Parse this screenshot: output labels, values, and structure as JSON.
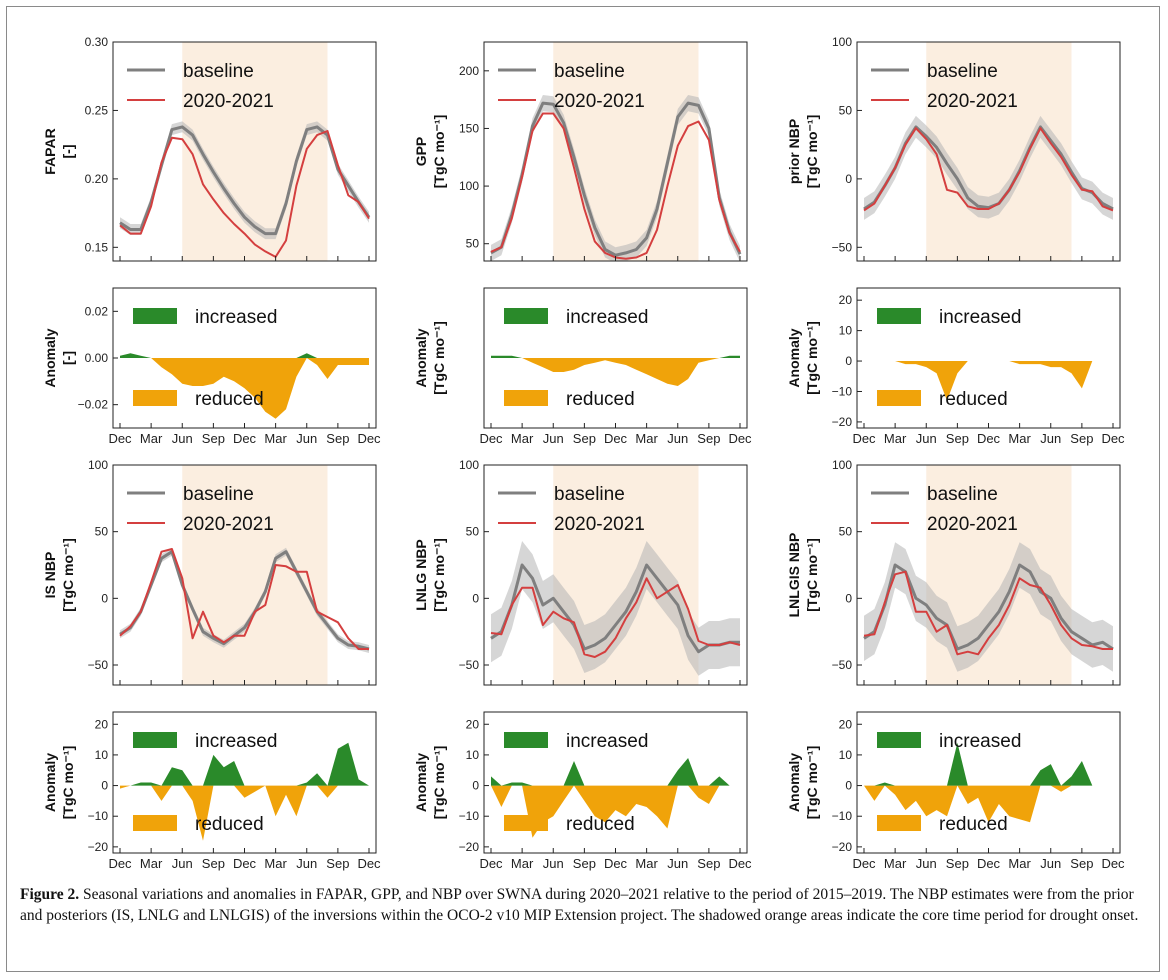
{
  "colors": {
    "baseline": "#7f7f7f",
    "recent": "#d43f3f",
    "band": "#b5b5b5",
    "increased": "#2a8a2a",
    "reduced": "#f0a30a",
    "drought": "#fbeee0"
  },
  "months": [
    "Dec",
    "Jan",
    "Feb",
    "Mar",
    "Apr",
    "May",
    "Jun",
    "Jul",
    "Aug",
    "Sep",
    "Oct",
    "Nov",
    "Dec",
    "Jan",
    "Feb",
    "Mar",
    "Apr",
    "May",
    "Jun",
    "Jul",
    "Aug",
    "Sep",
    "Oct",
    "Nov",
    "Dec"
  ],
  "anomaly_legend": {
    "increased": "increased",
    "reduced": "reduced"
  },
  "chart_data": [
    {
      "id": "fapar",
      "type": "line",
      "ylabel": [
        "FAPAR",
        "[-]"
      ],
      "ylim": [
        0.14,
        0.3
      ],
      "yticks": [
        0.15,
        0.2,
        0.25,
        0.3
      ],
      "ytick_labels": [
        "0.15",
        "0.20",
        "0.25",
        "0.30"
      ],
      "xticks": [],
      "show_xticks": false,
      "legend": "top-left",
      "drought_shade": [
        "Jun",
        "Aug"
      ],
      "series": [
        {
          "name": "baseline",
          "values": [
            0.168,
            0.163,
            0.163,
            0.183,
            0.21,
            0.236,
            0.238,
            0.232,
            0.218,
            0.205,
            0.193,
            0.182,
            0.172,
            0.165,
            0.16,
            0.16,
            0.182,
            0.213,
            0.236,
            0.238,
            0.232,
            0.207,
            0.195,
            0.183,
            0.172
          ],
          "band": 0.004
        },
        {
          "name": "2020-2021",
          "values": [
            0.166,
            0.16,
            0.16,
            0.18,
            0.212,
            0.23,
            0.229,
            0.218,
            0.196,
            0.185,
            0.175,
            0.167,
            0.16,
            0.152,
            0.147,
            0.143,
            0.155,
            0.195,
            0.222,
            0.232,
            0.235,
            0.21,
            0.188,
            0.183,
            0.171
          ]
        }
      ]
    },
    {
      "id": "gpp",
      "type": "line",
      "ylabel": [
        "GPP",
        "[TgC mo⁻¹]"
      ],
      "ylim": [
        35,
        225
      ],
      "yticks": [
        50,
        100,
        150,
        200
      ],
      "ytick_labels": [
        "50",
        "100",
        "150",
        "200"
      ],
      "xticks": [],
      "show_xticks": false,
      "legend": "top-left",
      "drought_shade": [
        "Jun",
        "Aug"
      ],
      "series": [
        {
          "name": "baseline",
          "values": [
            42,
            47,
            75,
            110,
            152,
            172,
            171,
            155,
            125,
            92,
            64,
            45,
            40,
            42,
            45,
            55,
            80,
            120,
            160,
            172,
            170,
            150,
            90,
            60,
            41
          ],
          "band": 7
        },
        {
          "name": "2020-2021",
          "values": [
            43,
            47,
            72,
            108,
            148,
            163,
            163,
            150,
            116,
            80,
            52,
            42,
            38,
            37,
            38,
            42,
            62,
            100,
            135,
            152,
            156,
            140,
            88,
            59,
            43
          ]
        }
      ]
    },
    {
      "id": "prior_nbp",
      "type": "line",
      "ylabel": [
        "prior NBP",
        "[TgC mo⁻¹]"
      ],
      "ylim": [
        -60,
        100
      ],
      "yticks": [
        -50,
        0,
        50,
        100
      ],
      "ytick_labels": [
        "−50",
        "0",
        "50",
        "100"
      ],
      "xticks": [],
      "show_xticks": false,
      "legend": "top-left",
      "drought_shade": [
        "Jun",
        "Aug"
      ],
      "series": [
        {
          "name": "baseline",
          "values": [
            -22,
            -17,
            -5,
            8,
            26,
            38,
            31,
            23,
            11,
            0,
            -14,
            -20,
            -21,
            -18,
            -8,
            6,
            23,
            38,
            28,
            18,
            5,
            -7,
            -10,
            -18,
            -22
          ],
          "band": 8
        },
        {
          "name": "2020-2021",
          "values": [
            -23,
            -18,
            -5,
            8,
            25,
            37,
            29,
            18,
            -8,
            -10,
            -20,
            -22,
            -22,
            -18,
            -8,
            5,
            22,
            37,
            26,
            16,
            3,
            -8,
            -9,
            -20,
            -23
          ]
        }
      ]
    },
    {
      "id": "fapar_anom",
      "type": "area",
      "ylabel": [
        "Anomaly",
        "[-]"
      ],
      "ylim": [
        -0.03,
        0.03
      ],
      "yticks": [
        -0.02,
        0.0,
        0.02
      ],
      "ytick_labels": [
        "−0.02",
        "0.00",
        "0.02"
      ],
      "show_xticks": true,
      "values": [
        0.001,
        0.002,
        0.001,
        0.0,
        -0.004,
        -0.007,
        -0.011,
        -0.012,
        -0.012,
        -0.011,
        -0.008,
        -0.01,
        -0.013,
        -0.017,
        -0.023,
        -0.026,
        -0.022,
        -0.008,
        0.002,
        -0.003,
        -0.009,
        -0.003,
        -0.003,
        -0.003,
        -0.003
      ]
    },
    {
      "id": "gpp_anom",
      "type": "area",
      "ylabel": [
        "Anomaly",
        "[TgC mo⁻¹]"
      ],
      "ylim": [
        -30,
        30
      ],
      "yticks": [],
      "ytick_labels": [],
      "show_xticks": true,
      "values": [
        1,
        1,
        1,
        0,
        -2,
        -4,
        -6,
        -6,
        -5,
        -3,
        -2,
        -1,
        -2,
        -3,
        -5,
        -7,
        -9,
        -11,
        -12,
        -9,
        -2,
        -1,
        0,
        1,
        1
      ]
    },
    {
      "id": "prior_anom",
      "type": "area",
      "ylabel": [
        "Anomaly",
        "[TgC mo⁻¹]"
      ],
      "ylim": [
        -22,
        24
      ],
      "yticks": [
        -20,
        -10,
        0,
        10,
        20
      ],
      "ytick_labels": [
        "−20",
        "−10",
        "0",
        "10",
        "20"
      ],
      "show_xticks": true,
      "values": [
        0,
        0,
        0,
        0,
        -1,
        -1,
        -2,
        -4,
        -13,
        -4,
        0,
        0,
        0,
        0,
        0,
        -1,
        -1,
        -1,
        -2,
        -2,
        -4,
        -9,
        0,
        0,
        0
      ]
    },
    {
      "id": "is_nbp",
      "type": "line",
      "ylabel": [
        "IS NBP",
        "[TgC mo⁻¹]"
      ],
      "ylim": [
        -65,
        100
      ],
      "yticks": [
        -50,
        0,
        50,
        100
      ],
      "ytick_labels": [
        "−50",
        "0",
        "50",
        "100"
      ],
      "xticks": [],
      "show_xticks": false,
      "legend": "top-left",
      "drought_shade": [
        "Jun",
        "Aug"
      ],
      "series": [
        {
          "name": "baseline",
          "values": [
            -27,
            -22,
            -10,
            10,
            30,
            35,
            10,
            -8,
            -25,
            -30,
            -34,
            -28,
            -22,
            -10,
            5,
            30,
            35,
            20,
            5,
            -10,
            -20,
            -30,
            -35,
            -36,
            -38
          ],
          "band": 3
        },
        {
          "name": "2020-2021",
          "values": [
            -28,
            -21,
            -10,
            12,
            35,
            37,
            15,
            -30,
            -10,
            -28,
            -33,
            -28,
            -28,
            -10,
            -5,
            25,
            24,
            20,
            20,
            -10,
            -14,
            -18,
            -30,
            -38,
            -38
          ]
        }
      ]
    },
    {
      "id": "lnlg_nbp",
      "type": "line",
      "ylabel": [
        "LNLG NBP",
        "[TgC mo⁻¹]"
      ],
      "ylim": [
        -65,
        100
      ],
      "yticks": [
        -50,
        0,
        50,
        100
      ],
      "ytick_labels": [
        "−50",
        "0",
        "50",
        "100"
      ],
      "xticks": [],
      "show_xticks": false,
      "legend": "top-left",
      "drought_shade": [
        "Jun",
        "Aug"
      ],
      "series": [
        {
          "name": "baseline",
          "values": [
            -30,
            -25,
            -5,
            25,
            15,
            -5,
            0,
            -10,
            -20,
            -38,
            -35,
            -30,
            -20,
            -10,
            5,
            25,
            15,
            5,
            -5,
            -28,
            -40,
            -35,
            -35,
            -33,
            -33
          ],
          "band": 18
        },
        {
          "name": "2020-2021",
          "values": [
            -26,
            -27,
            -5,
            8,
            8,
            -20,
            -10,
            -15,
            -18,
            -42,
            -44,
            -40,
            -30,
            -15,
            -3,
            15,
            0,
            5,
            10,
            -8,
            -32,
            -35,
            -35,
            -33,
            -35
          ]
        }
      ]
    },
    {
      "id": "lnlgis_nbp",
      "type": "line",
      "ylabel": [
        "LNLGIS NBP",
        "[TgC mo⁻¹]"
      ],
      "ylim": [
        -65,
        100
      ],
      "yticks": [
        -50,
        0,
        50,
        100
      ],
      "ytick_labels": [
        "−50",
        "0",
        "50",
        "100"
      ],
      "xticks": [],
      "show_xticks": false,
      "legend": "top-left",
      "drought_shade": [
        "Jun",
        "Aug"
      ],
      "series": [
        {
          "name": "baseline",
          "values": [
            -30,
            -25,
            -5,
            25,
            20,
            0,
            -5,
            -15,
            -20,
            -38,
            -35,
            -30,
            -20,
            -10,
            5,
            25,
            20,
            5,
            0,
            -15,
            -25,
            -30,
            -35,
            -33,
            -38
          ],
          "band": 17
        },
        {
          "name": "2020-2021",
          "values": [
            -28,
            -27,
            -3,
            18,
            20,
            -10,
            -10,
            -25,
            -20,
            -42,
            -40,
            -42,
            -30,
            -20,
            -5,
            15,
            10,
            8,
            -5,
            -20,
            -30,
            -35,
            -36,
            -38,
            -38
          ]
        }
      ]
    },
    {
      "id": "is_anom",
      "type": "area",
      "ylabel": [
        "Anomaly",
        "[TgC mo⁻¹]"
      ],
      "ylim": [
        -22,
        24
      ],
      "yticks": [
        -20,
        -10,
        0,
        10,
        20
      ],
      "ytick_labels": [
        "−20",
        "−10",
        "0",
        "10",
        "20"
      ],
      "show_xticks": true,
      "values": [
        -1,
        0,
        1,
        1,
        -5,
        6,
        5,
        -5,
        -18,
        10,
        6,
        8,
        -4,
        -2,
        0,
        -10,
        -3,
        -10,
        1,
        4,
        -4,
        12,
        14,
        2,
        0
      ]
    },
    {
      "id": "lnlg_anom",
      "type": "area",
      "ylabel": [
        "Anomaly",
        "[TgC mo⁻¹]"
      ],
      "ylim": [
        -22,
        24
      ],
      "yticks": [
        -20,
        -10,
        0,
        10,
        20
      ],
      "ytick_labels": [
        "−20",
        "−10",
        "0",
        "10",
        "20"
      ],
      "show_xticks": true,
      "values": [
        3,
        -7,
        1,
        1,
        -17,
        -12,
        -10,
        -5,
        8,
        -5,
        -10,
        -12,
        -8,
        -10,
        -6,
        -7,
        -10,
        -14,
        5,
        9,
        -4,
        -6,
        3,
        0,
        0
      ]
    },
    {
      "id": "lnlgis_anom",
      "type": "area",
      "ylabel": [
        "Anomaly",
        "[TgC mo⁻¹]"
      ],
      "ylim": [
        -22,
        24
      ],
      "yticks": [
        -20,
        -10,
        0,
        10,
        20
      ],
      "ytick_labels": [
        "−20",
        "−10",
        "0",
        "10",
        "20"
      ],
      "show_xticks": true,
      "values": [
        0,
        -5,
        1,
        -3,
        -8,
        -5,
        -10,
        -8,
        -10,
        14,
        -6,
        -4,
        -12,
        -6,
        -10,
        -11,
        -12,
        5,
        7,
        -2,
        3,
        8,
        0,
        0,
        0
      ]
    }
  ],
  "xtick_labels": [
    "Dec",
    "Mar",
    "Jun",
    "Sep",
    "Dec",
    "Mar",
    "Jun",
    "Sep",
    "Dec"
  ],
  "caption": {
    "label": "Figure 2.",
    "text": " Seasonal variations and anomalies in FAPAR, GPP, and NBP over SWNA during 2020–2021 relative to the period of 2015–2019. The NBP estimates were from the prior and posteriors (IS, LNLG and LNLGIS) of the inversions within the OCO-2 v10 MIP Extension project. The shadowed orange areas indicate the core time period for drought onset."
  }
}
